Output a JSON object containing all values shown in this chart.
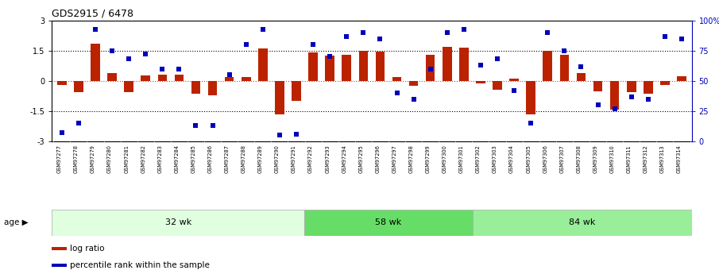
{
  "title": "GDS2915 / 6478",
  "samples": [
    "GSM97277",
    "GSM97278",
    "GSM97279",
    "GSM97280",
    "GSM97281",
    "GSM97282",
    "GSM97283",
    "GSM97284",
    "GSM97285",
    "GSM97286",
    "GSM97287",
    "GSM97288",
    "GSM97289",
    "GSM97290",
    "GSM97291",
    "GSM97292",
    "GSM97293",
    "GSM97294",
    "GSM97295",
    "GSM97296",
    "GSM97297",
    "GSM97298",
    "GSM97299",
    "GSM97300",
    "GSM97301",
    "GSM97302",
    "GSM97303",
    "GSM97304",
    "GSM97305",
    "GSM97306",
    "GSM97307",
    "GSM97308",
    "GSM97309",
    "GSM97310",
    "GSM97311",
    "GSM97312",
    "GSM97313",
    "GSM97314"
  ],
  "log_ratio": [
    -0.22,
    -0.55,
    1.85,
    0.38,
    -0.55,
    0.28,
    0.32,
    0.32,
    -0.65,
    -0.72,
    0.18,
    0.18,
    1.62,
    -1.65,
    -1.0,
    1.4,
    1.25,
    1.3,
    1.5,
    1.45,
    0.2,
    -0.25,
    1.3,
    1.7,
    1.65,
    -0.12,
    -0.45,
    0.12,
    -1.65,
    1.5,
    1.3,
    0.4,
    -0.52,
    -1.45,
    -0.58,
    -0.65,
    -0.22,
    0.22
  ],
  "percentile": [
    7,
    15,
    93,
    75,
    68,
    72,
    60,
    60,
    13,
    13,
    55,
    80,
    93,
    5,
    6,
    80,
    70,
    87,
    90,
    85,
    40,
    35,
    60,
    90,
    93,
    63,
    68,
    42,
    15,
    90,
    75,
    62,
    30,
    27,
    37,
    35,
    87,
    85
  ],
  "groups": [
    {
      "label": "32 wk",
      "start": 0,
      "end": 15,
      "color": "#dfffdf"
    },
    {
      "label": "58 wk",
      "start": 15,
      "end": 25,
      "color": "#66dd66"
    },
    {
      "label": "84 wk",
      "start": 25,
      "end": 38,
      "color": "#99ee99"
    }
  ],
  "bar_color": "#bb2200",
  "dot_color": "#0000bb",
  "ylim_left": [
    -3,
    3
  ],
  "ylim_right": [
    0,
    100
  ],
  "left_yticks": [
    -3,
    -1.5,
    0,
    1.5,
    3
  ],
  "left_yticklabels": [
    "-3",
    "-1.5",
    "0",
    "1.5",
    "3"
  ],
  "right_yticks": [
    0,
    25,
    50,
    75,
    100
  ],
  "right_yticklabels": [
    "0",
    "25",
    "50",
    "75",
    "100%"
  ],
  "hlines_dotted": [
    -1.5,
    1.5
  ],
  "hline_zero_color": "#dd3333",
  "legend_items": [
    {
      "label": "log ratio",
      "color": "#bb2200"
    },
    {
      "label": "percentile rank within the sample",
      "color": "#0000bb"
    }
  ],
  "age_label": "age ▶",
  "xtick_bg": "#dddddd"
}
